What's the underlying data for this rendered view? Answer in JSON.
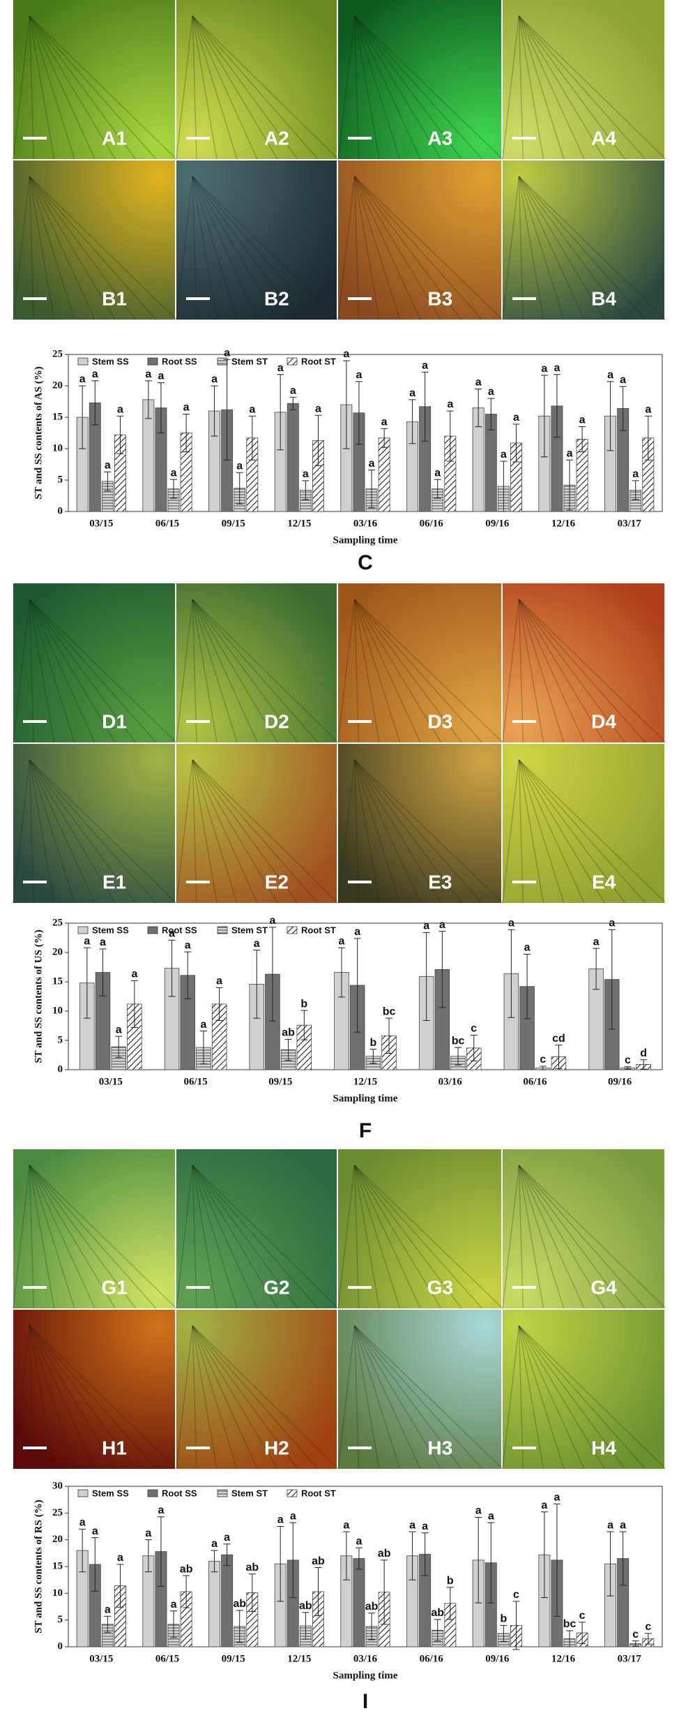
{
  "image_panels": [
    {
      "labels": [
        "A1",
        "A2",
        "A3",
        "A4",
        "B1",
        "B2",
        "B3",
        "B4"
      ]
    },
    {
      "labels": [
        "D1",
        "D2",
        "D3",
        "D4",
        "E1",
        "E2",
        "E3",
        "E4"
      ]
    },
    {
      "labels": [
        "G1",
        "G2",
        "G3",
        "G4",
        "H1",
        "H2",
        "H3",
        "H4"
      ]
    }
  ],
  "chart_data": [
    {
      "type": "bar",
      "panel_label": "C",
      "ylabel": "ST and SS contents of AS (%)",
      "xlabel": "Sampling time",
      "categories": [
        "03/15",
        "06/15",
        "09/15",
        "12/15",
        "03/16",
        "06/16",
        "09/16",
        "12/16",
        "03/17"
      ],
      "ylim": [
        0,
        25
      ],
      "yticks": [
        0,
        5,
        10,
        15,
        20,
        25
      ],
      "series": [
        {
          "name": "Stem SS",
          "color": "#d0d0d0",
          "pattern": "none",
          "values": [
            15,
            17.8,
            16,
            15.8,
            17,
            14.3,
            16.5,
            15.2,
            15.2
          ],
          "errors": [
            5,
            3,
            4,
            6,
            7,
            3.5,
            3,
            6.5,
            5.5
          ],
          "letters": [
            "a",
            "a",
            "a",
            "a",
            "a",
            "a",
            "a",
            "a",
            "a"
          ]
        },
        {
          "name": "Root SS",
          "color": "#707070",
          "pattern": "none",
          "values": [
            17.3,
            16.5,
            16.2,
            17.2,
            15.7,
            16.7,
            15.5,
            16.8,
            16.4
          ],
          "errors": [
            3.5,
            4,
            8,
            1,
            5,
            5.5,
            2.5,
            5,
            3.5
          ],
          "letters": [
            "a",
            "a",
            "a",
            "a",
            "a",
            "a",
            "a",
            "a",
            "a"
          ]
        },
        {
          "name": "Stem ST",
          "color": "#d8d8d8",
          "pattern": "horizontal",
          "values": [
            4.8,
            3.6,
            3.7,
            3.4,
            3.6,
            3.6,
            4,
            4.2,
            3.4
          ],
          "errors": [
            1.5,
            1.5,
            2.5,
            1.5,
            3,
            1.5,
            4,
            4,
            1.5
          ],
          "letters": [
            "a",
            "a",
            "a",
            "a",
            "a",
            "a",
            "a",
            "a",
            "a"
          ]
        },
        {
          "name": "Root ST",
          "color": "#ffffff",
          "pattern": "diagonal",
          "values": [
            12.2,
            12.5,
            11.7,
            11.3,
            11.7,
            12,
            10.9,
            11.5,
            11.7
          ],
          "errors": [
            3,
            3,
            3.5,
            4,
            1.5,
            4,
            3,
            2,
            3.5
          ],
          "letters": [
            "a",
            "a",
            "a",
            "a",
            "a",
            "a",
            "a",
            "a",
            "a"
          ]
        }
      ]
    },
    {
      "type": "bar",
      "panel_label": "F",
      "ylabel": "ST and SS contents of US (%)",
      "xlabel": "Sampling time",
      "categories": [
        "03/15",
        "06/15",
        "09/15",
        "12/15",
        "03/16",
        "06/16",
        "09/16"
      ],
      "ylim": [
        0,
        25
      ],
      "yticks": [
        0,
        5,
        10,
        15,
        20,
        25
      ],
      "series": [
        {
          "name": "Stem SS",
          "color": "#d0d0d0",
          "pattern": "none",
          "values": [
            14.8,
            17.3,
            14.6,
            16.6,
            15.9,
            16.4,
            17.2
          ],
          "errors": [
            6,
            4.8,
            5.8,
            4.2,
            7.5,
            7.5,
            3.5
          ],
          "letters": [
            "a",
            "a",
            "a",
            "a",
            "a",
            "a",
            "a"
          ]
        },
        {
          "name": "Root SS",
          "color": "#707070",
          "pattern": "none",
          "values": [
            16.6,
            16.1,
            16.3,
            14.4,
            17.1,
            14.2,
            15.4
          ],
          "errors": [
            4,
            4,
            8,
            8,
            6.5,
            5.5,
            8.5
          ],
          "letters": [
            "a",
            "a",
            "a",
            "a",
            "a",
            "a",
            "a"
          ]
        },
        {
          "name": "Stem ST",
          "color": "#d8d8d8",
          "pattern": "horizontal",
          "values": [
            3.9,
            3.8,
            3.4,
            2.3,
            2.3,
            0.3,
            0.3
          ],
          "errors": [
            1.8,
            2.8,
            1.8,
            1.2,
            1.5,
            0.3,
            0.2
          ],
          "letters": [
            "a",
            "a",
            "ab",
            "b",
            "bc",
            "c",
            "c"
          ]
        },
        {
          "name": "Root ST",
          "color": "#ffffff",
          "pattern": "diagonal",
          "values": [
            11.2,
            11.2,
            7.6,
            5.8,
            3.7,
            2.2,
            0.9
          ],
          "errors": [
            4,
            2.8,
            2.5,
            3,
            2.2,
            2,
            0.8
          ],
          "letters": [
            "a",
            "a",
            "b",
            "bc",
            "c",
            "cd",
            "d"
          ]
        }
      ]
    },
    {
      "type": "bar",
      "panel_label": "I",
      "ylabel": "ST and SS contents of RS (%)",
      "xlabel": "Sampling time",
      "categories": [
        "03/15",
        "06/15",
        "09/15",
        "12/15",
        "03/16",
        "06/16",
        "09/16",
        "12/16",
        "03/17"
      ],
      "ylim": [
        0,
        30
      ],
      "yticks": [
        0,
        5,
        10,
        15,
        20,
        25,
        30
      ],
      "series": [
        {
          "name": "Stem SS",
          "color": "#d0d0d0",
          "pattern": "none",
          "values": [
            18,
            17,
            16,
            15.5,
            17,
            17,
            16.2,
            17.2,
            15.5
          ],
          "errors": [
            4,
            3,
            2,
            7,
            4.5,
            4.5,
            8,
            8,
            6
          ],
          "letters": [
            "a",
            "a",
            "a",
            "a",
            "a",
            "a",
            "a",
            "a",
            "a"
          ]
        },
        {
          "name": "Root SS",
          "color": "#707070",
          "pattern": "none",
          "values": [
            15.4,
            17.8,
            17.2,
            16.2,
            16.5,
            17.3,
            15.7,
            16.2,
            16.5
          ],
          "errors": [
            5,
            6.5,
            2,
            7,
            2,
            4,
            7.5,
            10.5,
            5
          ],
          "letters": [
            "a",
            "a",
            "a",
            "a",
            "a",
            "a",
            "a",
            "a",
            "a"
          ]
        },
        {
          "name": "Stem ST",
          "color": "#d8d8d8",
          "pattern": "horizontal",
          "values": [
            4.2,
            4.2,
            3.8,
            3.9,
            3.8,
            3.1,
            2.5,
            1.5,
            0.6
          ],
          "errors": [
            1.5,
            2.5,
            3,
            2.5,
            2.5,
            2,
            1.5,
            1.5,
            0.5
          ],
          "letters": [
            "a",
            "a",
            "ab",
            "ab",
            "ab",
            "ab",
            "b",
            "bc",
            "c"
          ]
        },
        {
          "name": "Root ST",
          "color": "#ffffff",
          "pattern": "diagonal",
          "values": [
            11.4,
            10.3,
            10.1,
            10.3,
            10.2,
            8.1,
            4,
            2.6,
            1.5
          ],
          "errors": [
            4,
            3,
            3.5,
            4.5,
            6,
            3,
            4.5,
            2,
            1
          ],
          "letters": [
            "a",
            "ab",
            "ab",
            "ab",
            "ab",
            "b",
            "c",
            "c",
            "c"
          ]
        }
      ]
    }
  ]
}
